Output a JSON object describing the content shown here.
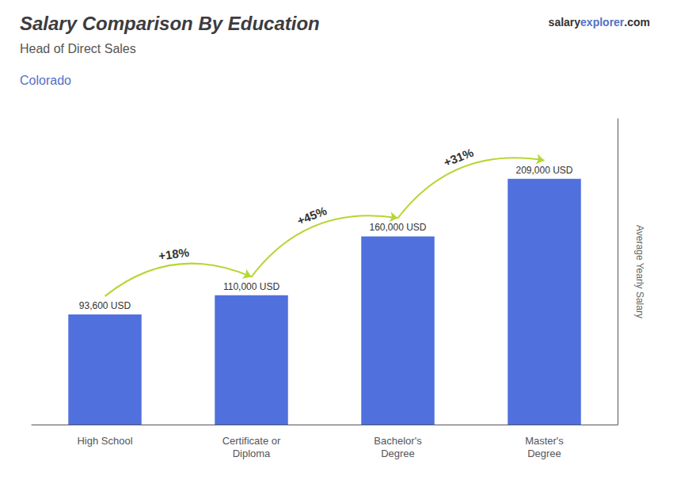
{
  "chart_data": {
    "type": "bar",
    "title": "Salary Comparison By Education",
    "subtitle": "Head of Direct Sales",
    "location": "Colorado",
    "watermark": [
      "salary",
      "explorer",
      ".com"
    ],
    "ylabel": "Average Yearly Salary",
    "categories": [
      "High School",
      "Certificate or\nDiploma",
      "Bachelor's\nDegree",
      "Master's\nDegree"
    ],
    "values": [
      93600,
      110000,
      160000,
      209000
    ],
    "value_labels": [
      "93,600 USD",
      "110,000 USD",
      "160,000 USD",
      "209,000 USD"
    ],
    "data_labels": true,
    "annotations": [
      {
        "text": "+18%",
        "from": "High School",
        "to": "Certificate or\nDiploma"
      },
      {
        "text": "+45%",
        "from": "Certificate or\nDiploma",
        "to": "Bachelor's\nDegree"
      },
      {
        "text": "+31%",
        "from": "Bachelor's\nDegree",
        "to": "Master's\nDegree"
      }
    ],
    "ylim": [
      0,
      260000
    ],
    "yticks": [],
    "tick_labels": "x",
    "grid": false
  }
}
